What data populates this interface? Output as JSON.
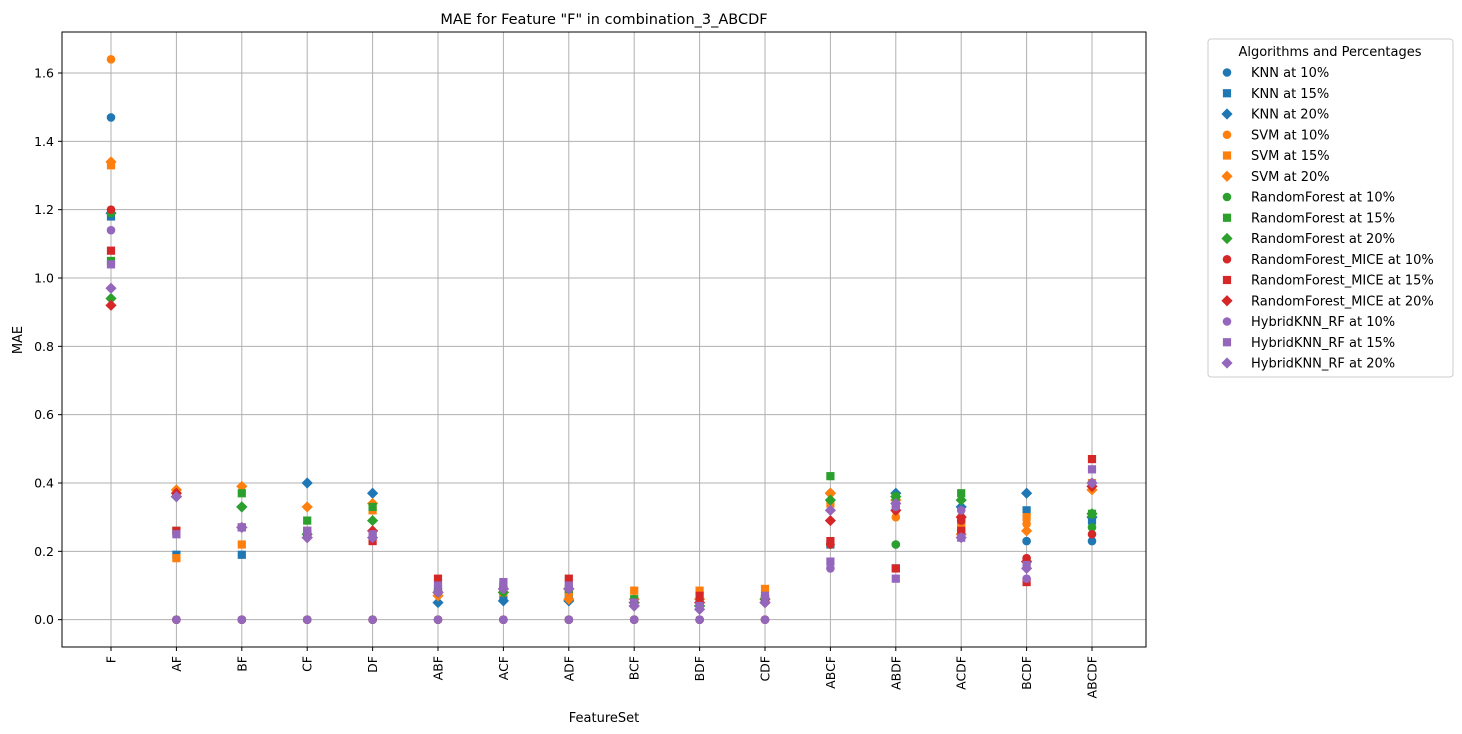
{
  "chart_data": {
    "type": "scatter",
    "title": "MAE for Feature \"F\" in combination_3_ABCDF",
    "xlabel": "FeatureSet",
    "ylabel": "MAE",
    "ylim": [
      -0.08,
      1.72
    ],
    "yticks": [
      "0.0",
      "0.2",
      "0.4",
      "0.6",
      "0.8",
      "1.0",
      "1.2",
      "1.4",
      "1.6"
    ],
    "grid": true,
    "legend_title": "Algorithms and Percentages",
    "legend_position": "outside-upper-right",
    "categories": [
      "F",
      "AF",
      "BF",
      "CF",
      "DF",
      "ABF",
      "ACF",
      "ADF",
      "BCF",
      "BDF",
      "CDF",
      "ABCF",
      "ABDF",
      "ACDF",
      "BCDF",
      "ABCDF"
    ],
    "series": [
      {
        "name": "KNN at 10%",
        "color": "#1f77b4",
        "marker": "circle",
        "values": [
          1.47,
          0,
          0,
          0,
          0,
          0,
          0,
          0,
          0,
          0,
          0,
          0.22,
          0.22,
          0.3,
          0.23,
          0.23
        ]
      },
      {
        "name": "KNN at 15%",
        "color": "#1f77b4",
        "marker": "square",
        "values": [
          1.18,
          0.19,
          0.19,
          0.26,
          0.25,
          0.08,
          0.07,
          0.07,
          0.05,
          0.05,
          0.06,
          0.22,
          0.15,
          0.29,
          0.32,
          0.29
        ]
      },
      {
        "name": "KNN at 20%",
        "color": "#1f77b4",
        "marker": "diamond",
        "values": [
          1.19,
          0.36,
          0.33,
          0.4,
          0.37,
          0.05,
          0.055,
          0.055,
          0.05,
          0.04,
          0.05,
          0.37,
          0.37,
          0.33,
          0.37,
          0.3
        ]
      },
      {
        "name": "SVM at 10%",
        "color": "#ff7f0e",
        "marker": "circle",
        "values": [
          1.64,
          0,
          0,
          0,
          0,
          0,
          0,
          0,
          0,
          0,
          0,
          0.37,
          0.3,
          0.3,
          0.28,
          0.4
        ]
      },
      {
        "name": "SVM at 15%",
        "color": "#ff7f0e",
        "marker": "square",
        "values": [
          1.33,
          0.18,
          0.22,
          0.26,
          0.32,
          0.08,
          0.08,
          0.08,
          0.085,
          0.085,
          0.09,
          0.34,
          0.34,
          0.27,
          0.3,
          0.4
        ]
      },
      {
        "name": "SVM at 20%",
        "color": "#ff7f0e",
        "marker": "diamond",
        "values": [
          1.34,
          0.38,
          0.39,
          0.33,
          0.34,
          0.07,
          0.08,
          0.06,
          0.06,
          0.06,
          0.06,
          0.37,
          0.35,
          0.25,
          0.26,
          0.38
        ]
      },
      {
        "name": "RandomForest at 10%",
        "color": "#2ca02c",
        "marker": "circle",
        "values": [
          1.19,
          0,
          0,
          0,
          0,
          0,
          0,
          0,
          0,
          0,
          0,
          0.22,
          0.22,
          0.26,
          0.17,
          0.27
        ]
      },
      {
        "name": "RandomForest at 15%",
        "color": "#2ca02c",
        "marker": "square",
        "values": [
          1.05,
          0.26,
          0.37,
          0.29,
          0.33,
          0.09,
          0.09,
          0.09,
          0.06,
          0.05,
          0.06,
          0.42,
          0.36,
          0.37,
          0.17,
          0.31
        ]
      },
      {
        "name": "RandomForest at 20%",
        "color": "#2ca02c",
        "marker": "diamond",
        "values": [
          0.94,
          0.36,
          0.33,
          0.25,
          0.29,
          0.08,
          0.08,
          0.09,
          0.05,
          0.04,
          0.06,
          0.35,
          0.36,
          0.35,
          0.17,
          0.31
        ]
      },
      {
        "name": "RandomForest_MICE at 10%",
        "color": "#d62728",
        "marker": "circle",
        "values": [
          1.2,
          0,
          0,
          0,
          0,
          0,
          0,
          0,
          0,
          0,
          0,
          0.22,
          0.32,
          0.29,
          0.18,
          0.25
        ]
      },
      {
        "name": "RandomForest_MICE at 15%",
        "color": "#d62728",
        "marker": "square",
        "values": [
          1.08,
          0.26,
          0.27,
          0.25,
          0.23,
          0.12,
          0.1,
          0.12,
          0.05,
          0.07,
          0.06,
          0.23,
          0.15,
          0.26,
          0.11,
          0.47
        ]
      },
      {
        "name": "RandomForest_MICE at 20%",
        "color": "#d62728",
        "marker": "diamond",
        "values": [
          0.92,
          0.37,
          0.27,
          0.24,
          0.26,
          0.08,
          0.09,
          0.09,
          0.04,
          0.05,
          0.05,
          0.29,
          0.32,
          0.3,
          0.17,
          0.39
        ]
      },
      {
        "name": "HybridKNN_RF at 10%",
        "color": "#9467bd",
        "marker": "circle",
        "values": [
          1.14,
          0,
          0,
          0,
          0,
          0,
          0,
          0,
          0,
          0,
          0,
          0.15,
          0.33,
          0.32,
          0.12,
          0.4
        ]
      },
      {
        "name": "HybridKNN_RF at 15%",
        "color": "#9467bd",
        "marker": "square",
        "values": [
          1.04,
          0.25,
          0.27,
          0.26,
          0.25,
          0.1,
          0.11,
          0.1,
          0.05,
          0.04,
          0.07,
          0.17,
          0.12,
          0.24,
          0.16,
          0.44
        ]
      },
      {
        "name": "HybridKNN_RF at 20%",
        "color": "#9467bd",
        "marker": "diamond",
        "values": [
          0.97,
          0.36,
          0.27,
          0.24,
          0.24,
          0.08,
          0.09,
          0.09,
          0.04,
          0.03,
          0.05,
          0.32,
          0.34,
          0.24,
          0.15,
          0.4
        ]
      }
    ]
  }
}
